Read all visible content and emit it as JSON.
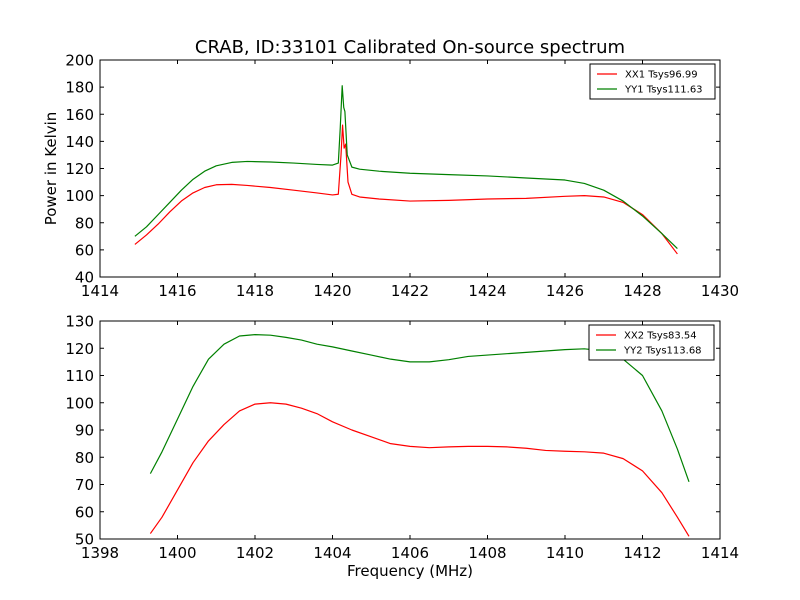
{
  "colors": {
    "red": "#ff0000",
    "green": "#008000"
  },
  "chart_data": [
    {
      "type": "line",
      "title": "CRAB, ID:33101 Calibrated On-source spectrum",
      "xlabel": "",
      "ylabel": "Power in Kelvin",
      "xlim": [
        1414,
        1430
      ],
      "ylim": [
        40,
        200
      ],
      "xticks": [
        1414,
        1416,
        1418,
        1420,
        1422,
        1424,
        1426,
        1428,
        1430
      ],
      "yticks": [
        40,
        60,
        80,
        100,
        120,
        140,
        160,
        180,
        200
      ],
      "legend_position": "top-right",
      "series": [
        {
          "name": "XX1 Tsys96.99",
          "color": "#ff0000",
          "points": [
            [
              1414.9,
              64
            ],
            [
              1415.2,
              71
            ],
            [
              1415.5,
              79
            ],
            [
              1415.8,
              88
            ],
            [
              1416.1,
              96
            ],
            [
              1416.4,
              102
            ],
            [
              1416.7,
              106
            ],
            [
              1417.0,
              108
            ],
            [
              1417.4,
              108.3
            ],
            [
              1417.8,
              107.5
            ],
            [
              1418.4,
              106
            ],
            [
              1419.0,
              104
            ],
            [
              1419.6,
              102
            ],
            [
              1420.0,
              100.5
            ],
            [
              1420.15,
              101
            ],
            [
              1420.22,
              130
            ],
            [
              1420.26,
              152
            ],
            [
              1420.3,
              135
            ],
            [
              1420.34,
              138
            ],
            [
              1420.4,
              110
            ],
            [
              1420.5,
              101
            ],
            [
              1420.7,
              99
            ],
            [
              1421.2,
              97.5
            ],
            [
              1422.0,
              96
            ],
            [
              1423.0,
              96.5
            ],
            [
              1424.0,
              97.5
            ],
            [
              1425.0,
              98
            ],
            [
              1426.0,
              99.5
            ],
            [
              1426.5,
              100
            ],
            [
              1427.0,
              99
            ],
            [
              1427.5,
              95
            ],
            [
              1428.0,
              86
            ],
            [
              1428.5,
              72
            ],
            [
              1428.9,
              57
            ]
          ]
        },
        {
          "name": "YY1 Tsys111.63",
          "color": "#008000",
          "points": [
            [
              1414.9,
              70
            ],
            [
              1415.2,
              77
            ],
            [
              1415.5,
              86
            ],
            [
              1415.8,
              95
            ],
            [
              1416.1,
              104
            ],
            [
              1416.4,
              112
            ],
            [
              1416.7,
              118
            ],
            [
              1417.0,
              122
            ],
            [
              1417.4,
              124.5
            ],
            [
              1417.8,
              125.2
            ],
            [
              1418.4,
              124.8
            ],
            [
              1419.0,
              124
            ],
            [
              1419.6,
              123
            ],
            [
              1420.0,
              122.5
            ],
            [
              1420.15,
              124
            ],
            [
              1420.2,
              150
            ],
            [
              1420.25,
              181
            ],
            [
              1420.29,
              165
            ],
            [
              1420.32,
              162
            ],
            [
              1420.38,
              130
            ],
            [
              1420.5,
              121
            ],
            [
              1420.7,
              119.5
            ],
            [
              1421.2,
              118
            ],
            [
              1422.0,
              116.5
            ],
            [
              1423.0,
              115.5
            ],
            [
              1424.0,
              114.5
            ],
            [
              1425.0,
              113
            ],
            [
              1426.0,
              111.5
            ],
            [
              1426.5,
              109
            ],
            [
              1427.0,
              104
            ],
            [
              1427.5,
              96
            ],
            [
              1428.0,
              85
            ],
            [
              1428.5,
              72
            ],
            [
              1428.9,
              61
            ]
          ]
        }
      ]
    },
    {
      "type": "line",
      "title": "",
      "xlabel": "Frequency (MHz)",
      "ylabel": "",
      "xlim": [
        1398,
        1414
      ],
      "ylim": [
        50,
        130
      ],
      "xticks": [
        1398,
        1400,
        1402,
        1404,
        1406,
        1408,
        1410,
        1412,
        1414
      ],
      "yticks": [
        50,
        60,
        70,
        80,
        90,
        100,
        110,
        120,
        130
      ],
      "legend_position": "top-right",
      "series": [
        {
          "name": "XX2 Tsys83.54",
          "color": "#ff0000",
          "points": [
            [
              1399.3,
              52
            ],
            [
              1399.6,
              58
            ],
            [
              1400.0,
              68
            ],
            [
              1400.4,
              78
            ],
            [
              1400.8,
              86
            ],
            [
              1401.2,
              92
            ],
            [
              1401.6,
              97
            ],
            [
              1402.0,
              99.5
            ],
            [
              1402.4,
              100
            ],
            [
              1402.8,
              99.5
            ],
            [
              1403.2,
              98
            ],
            [
              1403.6,
              96
            ],
            [
              1404.0,
              93
            ],
            [
              1404.5,
              90
            ],
            [
              1405.0,
              87.5
            ],
            [
              1405.5,
              85
            ],
            [
              1406.0,
              84
            ],
            [
              1406.5,
              83.5
            ],
            [
              1407.0,
              83.8
            ],
            [
              1407.5,
              84
            ],
            [
              1408.0,
              84
            ],
            [
              1408.5,
              83.8
            ],
            [
              1409.0,
              83.3
            ],
            [
              1409.5,
              82.5
            ],
            [
              1410.0,
              82.2
            ],
            [
              1410.5,
              82
            ],
            [
              1411.0,
              81.5
            ],
            [
              1411.5,
              79.5
            ],
            [
              1412.0,
              75
            ],
            [
              1412.5,
              67
            ],
            [
              1412.9,
              58
            ],
            [
              1413.2,
              51
            ]
          ]
        },
        {
          "name": "YY2 Tsys113.68",
          "color": "#008000",
          "points": [
            [
              1399.3,
              74
            ],
            [
              1399.6,
              82
            ],
            [
              1400.0,
              94
            ],
            [
              1400.4,
              106
            ],
            [
              1400.8,
              116
            ],
            [
              1401.2,
              121.5
            ],
            [
              1401.6,
              124.5
            ],
            [
              1402.0,
              125
            ],
            [
              1402.4,
              124.8
            ],
            [
              1402.8,
              124
            ],
            [
              1403.2,
              123
            ],
            [
              1403.6,
              121.5
            ],
            [
              1404.0,
              120.5
            ],
            [
              1404.5,
              119
            ],
            [
              1405.0,
              117.5
            ],
            [
              1405.5,
              116
            ],
            [
              1406.0,
              115
            ],
            [
              1406.5,
              115
            ],
            [
              1407.0,
              115.8
            ],
            [
              1407.5,
              117
            ],
            [
              1408.0,
              117.5
            ],
            [
              1408.5,
              118
            ],
            [
              1409.0,
              118.5
            ],
            [
              1409.5,
              119
            ],
            [
              1410.0,
              119.5
            ],
            [
              1410.5,
              119.8
            ],
            [
              1411.0,
              119
            ],
            [
              1411.5,
              116
            ],
            [
              1412.0,
              110
            ],
            [
              1412.5,
              97
            ],
            [
              1412.9,
              83
            ],
            [
              1413.2,
              71
            ]
          ]
        }
      ]
    }
  ]
}
